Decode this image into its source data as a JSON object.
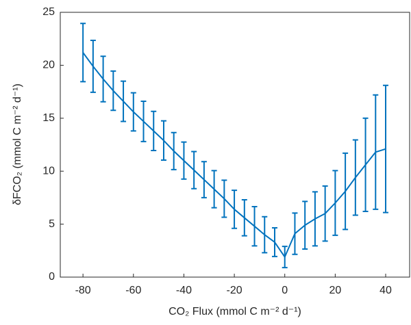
{
  "chart_data": {
    "type": "line",
    "xlabel": "CO₂ Flux (mmol C m⁻² d⁻¹)",
    "ylabel": "δFCO₂ (mmol C m⁻² d⁻¹)",
    "x": [
      -80,
      -76,
      -72,
      -68,
      -64,
      -60,
      -56,
      -52,
      -48,
      -44,
      -40,
      -36,
      -32,
      -28,
      -24,
      -20,
      -16,
      -12,
      -8,
      -4,
      0,
      4,
      8,
      12,
      16,
      20,
      24,
      28,
      32,
      36,
      40
    ],
    "series": [
      {
        "color": "#0072BD",
        "values": [
          21.2,
          19.9,
          18.7,
          17.6,
          16.6,
          15.6,
          14.7,
          13.8,
          12.9,
          11.9,
          11.0,
          10.1,
          9.2,
          8.3,
          7.4,
          6.4,
          5.6,
          4.8,
          4.0,
          3.3,
          1.9,
          4.1,
          4.9,
          5.5,
          6.0,
          7.0,
          8.1,
          9.4,
          10.6,
          11.8,
          12.1
        ],
        "errors": [
          2.75,
          2.45,
          2.15,
          1.85,
          1.9,
          1.8,
          1.9,
          1.85,
          1.85,
          1.75,
          1.75,
          1.75,
          1.7,
          1.75,
          1.75,
          1.8,
          1.7,
          1.85,
          1.7,
          1.35,
          1.0,
          1.95,
          2.25,
          2.55,
          2.6,
          3.05,
          3.6,
          3.55,
          4.4,
          5.4,
          6.0
        ]
      }
    ],
    "xlim": [
      -89,
      49.5
    ],
    "xticks": [
      -80,
      -60,
      -40,
      -20,
      0,
      20,
      40
    ],
    "ylim": [
      0,
      25
    ],
    "yticks": [
      0,
      5,
      10,
      15,
      20,
      25
    ]
  }
}
